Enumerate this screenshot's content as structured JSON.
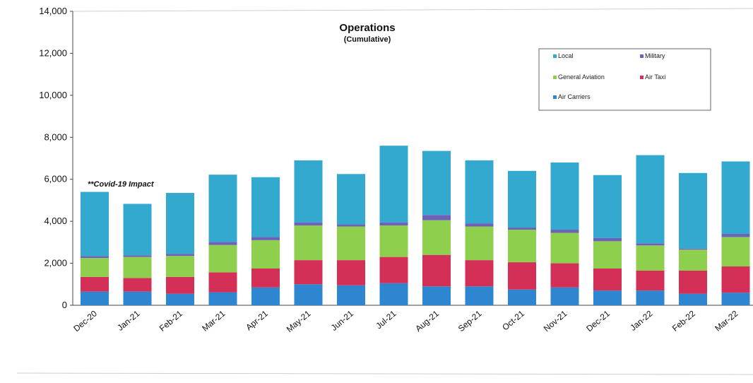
{
  "chart_data": {
    "type": "bar",
    "stacked": true,
    "title": "Operations",
    "subtitle": "(Cumulative)",
    "annotation": "**Covid-19 Impact",
    "ylim": [
      0,
      14000
    ],
    "y_ticks": [
      "0",
      "2,000",
      "4,000",
      "6,000",
      "8,000",
      "10,000",
      "12,000",
      "14,000"
    ],
    "grid": false,
    "legend_position": "top-right",
    "categories": [
      "Dec-20",
      "Jan-21",
      "Feb-21",
      "Mar-21",
      "Apr-21",
      "May-21",
      "Jun-21",
      "Jul-21",
      "Aug-21",
      "Sep-21",
      "Oct-21",
      "Nov-21",
      "Dec-21",
      "Jan-22",
      "Feb-22",
      "Mar-22"
    ],
    "series": [
      {
        "name": "Air Carriers",
        "color": "#2e86d1",
        "values": [
          650,
          650,
          550,
          620,
          850,
          1000,
          950,
          1050,
          900,
          900,
          750,
          850,
          700,
          700,
          550,
          600
        ]
      },
      {
        "name": "Air Taxi",
        "color": "#d42f56",
        "values": [
          700,
          650,
          800,
          950,
          900,
          1150,
          1200,
          1250,
          1500,
          1250,
          1300,
          1150,
          1050,
          950,
          1100,
          1250
        ]
      },
      {
        "name": "General Aviation",
        "color": "#8fcf4e",
        "values": [
          900,
          1000,
          1000,
          1300,
          1350,
          1650,
          1600,
          1500,
          1650,
          1600,
          1550,
          1450,
          1300,
          1200,
          1000,
          1400
        ]
      },
      {
        "name": "Military",
        "color": "#6e62b8",
        "values": [
          100,
          80,
          100,
          150,
          150,
          150,
          100,
          150,
          250,
          150,
          100,
          150,
          150,
          100,
          50,
          150
        ]
      },
      {
        "name": "Local",
        "color": "#33a9cf",
        "values": [
          3050,
          2450,
          2900,
          3200,
          2850,
          2950,
          2400,
          3650,
          3050,
          3000,
          2700,
          3200,
          3000,
          4200,
          3600,
          3450
        ]
      }
    ],
    "legend": [
      {
        "key": "Local",
        "label": "Local",
        "color": "#33a9cf"
      },
      {
        "key": "Military",
        "label": "Military",
        "color": "#6e62b8"
      },
      {
        "key": "General Aviation",
        "label": "General Aviation",
        "color": "#8fcf4e"
      },
      {
        "key": "Air Taxi",
        "label": "Air Taxi",
        "color": "#d42f56"
      },
      {
        "key": "Air Carriers",
        "label": "Air Carriers",
        "color": "#2e86d1"
      }
    ]
  }
}
